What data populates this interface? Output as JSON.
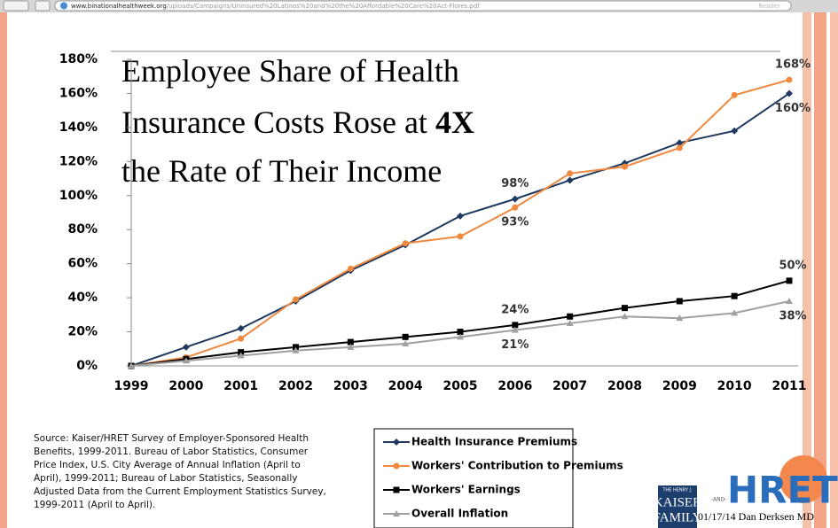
{
  "browser": {
    "url_host": "www.binationalhealthweek.org",
    "url_path": "/uploads/Campaigns/Uninsured%20Latinos%20and%20the%20Affordable%20Care%20Act-Flores.pdf",
    "reader": "Reader"
  },
  "chart_data": {
    "type": "line",
    "title": {
      "line1": "Employee Share of Health",
      "line2": "Insurance Costs Rose at",
      "emphasis": "4X",
      "line3": "the Rate of Their Income"
    },
    "categories": [
      "1999",
      "2000",
      "2001",
      "2002",
      "2003",
      "2004",
      "2005",
      "2006",
      "2007",
      "2008",
      "2009",
      "2010",
      "2011"
    ],
    "ylim": [
      0,
      180
    ],
    "yticks": [
      {
        "value": 0,
        "label": "0%"
      },
      {
        "value": 20,
        "label": "20%"
      },
      {
        "value": 40,
        "label": "40%"
      },
      {
        "value": 60,
        "label": "60%"
      },
      {
        "value": 80,
        "label": "80%"
      },
      {
        "value": 100,
        "label": "100%"
      },
      {
        "value": 120,
        "label": "120%"
      },
      {
        "value": 140,
        "label": "140%"
      },
      {
        "value": 160,
        "label": "160%"
      },
      {
        "value": 180,
        "label": "180%"
      }
    ],
    "grid": false,
    "series": [
      {
        "name": "Health Insurance Premiums",
        "color": "#1f3a5f",
        "marker": "diamond",
        "values": [
          0,
          11,
          22,
          38,
          56,
          71,
          88,
          98,
          109,
          119,
          131,
          138,
          160
        ],
        "value_labels": [
          null,
          null,
          null,
          null,
          null,
          null,
          null,
          "98%",
          null,
          null,
          null,
          null,
          "160%"
        ]
      },
      {
        "name": "Workers' Contribution to Premiums",
        "color": "#f0883e",
        "marker": "circle",
        "values": [
          0,
          5,
          16,
          39,
          57,
          72,
          76,
          93,
          113,
          117,
          128,
          159,
          168
        ],
        "value_labels": [
          null,
          null,
          null,
          null,
          null,
          null,
          null,
          "93%",
          null,
          null,
          null,
          null,
          "168%"
        ]
      },
      {
        "name": "Workers' Earnings",
        "color": "#000000",
        "marker": "square",
        "values": [
          0,
          4,
          8,
          11,
          14,
          17,
          20,
          24,
          29,
          34,
          38,
          41,
          50
        ],
        "value_labels": [
          null,
          null,
          null,
          null,
          null,
          null,
          null,
          "24%",
          null,
          null,
          null,
          null,
          "50%"
        ]
      },
      {
        "name": "Overall Inflation",
        "color": "#a0a0a0",
        "marker": "triangle",
        "values": [
          0,
          3,
          6,
          9,
          11,
          13,
          17,
          21,
          25,
          29,
          28,
          31,
          38
        ],
        "value_labels": [
          null,
          null,
          null,
          null,
          null,
          null,
          null,
          "21%",
          null,
          null,
          null,
          null,
          "38%"
        ]
      }
    ]
  },
  "source": [
    "Source:  Kaiser/HRET Survey of Employer-Sponsored Health",
    "Benefits, 1999-2011.  Bureau of Labor Statistics, Consumer",
    "Price Index, U.S. City Average of Annual Inflation (April to",
    "April), 1999-2011; Bureau of Labor Statistics, Seasonally",
    "Adjusted Data from the Current Employment Statistics Survey,",
    "1999-2011 (April to April)."
  ],
  "logos": {
    "kaiser_top": "THE HENRY J.",
    "kaiser": "KAISER",
    "family": "FAMILY",
    "and": "-AND-",
    "hret": "HRET"
  },
  "footer": "01/17/14 Dan Derksen MD"
}
